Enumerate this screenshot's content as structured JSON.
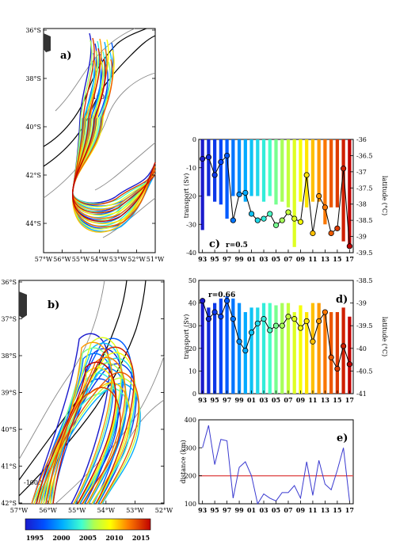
{
  "colors": {
    "frame": "#000000",
    "threshold_line": "#e05050",
    "distance_line": "#3a3ad0",
    "connector": "#000000"
  },
  "colorbar": {
    "labels": [
      "1995",
      "2000",
      "2005",
      "2010",
      "2015"
    ]
  },
  "chart_data": [
    {
      "panel": "a)",
      "type": "map",
      "lat_ticks": [
        "36°S",
        "38°S",
        "40°S",
        "42°S",
        "44°S"
      ],
      "lon_ticks": [
        "57°W",
        "56°W",
        "55°W",
        "54°W",
        "53°W",
        "52°W",
        "51°W"
      ]
    },
    {
      "panel": "b)",
      "type": "map",
      "lat_ticks": [
        "36°S",
        "37°S",
        "38°S",
        "39°S",
        "40°S",
        "41°S",
        "42°S"
      ],
      "lon_ticks": [
        "57°W",
        "56°W",
        "55°W",
        "54°W",
        "53°W",
        "52°W"
      ]
    },
    {
      "panel": "c)",
      "type": "bar",
      "annotation": "r=0.5",
      "ylabel": "transport (Sv)",
      "ylabel_right": "latitude (°C)",
      "ylim": [
        -40,
        0
      ],
      "yticks": [
        "0",
        "-10",
        "-20",
        "-30",
        "-40"
      ],
      "ylim_right": [
        -39.5,
        -36
      ],
      "yticks_right": [
        "-36",
        "-36.5",
        "-37",
        "-37.5",
        "-38",
        "-38.5",
        "-39",
        "-39.5"
      ],
      "xtick_labels": [
        "93",
        "95",
        "97",
        "99",
        "01",
        "03",
        "05",
        "07",
        "09",
        "11",
        "13",
        "15",
        "17"
      ],
      "years": [
        1993,
        1994,
        1995,
        1996,
        1997,
        1998,
        1999,
        2000,
        2001,
        2002,
        2003,
        2004,
        2005,
        2006,
        2007,
        2008,
        2009,
        2010,
        2011,
        2012,
        2013,
        2014,
        2015,
        2016,
        2017
      ],
      "values": [
        -32,
        -20,
        -22,
        -23,
        -28,
        -20,
        -20,
        -22,
        -20,
        -20,
        -22,
        -20,
        -23,
        -22,
        -24,
        -38,
        -22,
        -24,
        -22,
        -22,
        -30,
        -24,
        -24,
        -36,
        -37
      ],
      "latitude": [
        -36.6,
        -36.55,
        -37.1,
        -36.7,
        -36.5,
        -38.5,
        -37.7,
        -37.65,
        -38.3,
        -38.5,
        -38.45,
        -38.3,
        -38.65,
        -38.5,
        -38.25,
        -38.45,
        -38.55,
        -37.1,
        -38.9,
        -37.75,
        -38.1,
        -38.9,
        -38.75,
        -36.9,
        -39.3
      ]
    },
    {
      "panel": "d)",
      "type": "bar",
      "annotation": "r=0.66",
      "ylabel": "transport (Sv)",
      "ylabel_right": "latitude (°C)",
      "ylim": [
        0,
        50
      ],
      "yticks": [
        "0",
        "10",
        "20",
        "30",
        "40",
        "50"
      ],
      "ylim_right": [
        -41,
        -38.5
      ],
      "yticks_right": [
        "-38.5",
        "-39",
        "-39.5",
        "-40",
        "-40.5",
        "-41"
      ],
      "xtick_labels": [
        "93",
        "95",
        "97",
        "99",
        "01",
        "03",
        "05",
        "07",
        "09",
        "11",
        "13",
        "15",
        "17"
      ],
      "years": [
        1993,
        1994,
        1995,
        1996,
        1997,
        1998,
        1999,
        2000,
        2001,
        2002,
        2003,
        2004,
        2005,
        2006,
        2007,
        2008,
        2009,
        2010,
        2011,
        2012,
        2013,
        2014,
        2015,
        2016,
        2017
      ],
      "values": [
        42,
        38,
        40,
        42,
        43,
        42,
        40,
        36,
        38,
        38,
        40,
        40,
        39,
        40,
        40,
        36,
        39,
        36,
        40,
        40,
        35,
        36,
        36,
        38,
        34
      ],
      "latitude": [
        -38.95,
        -39.35,
        -39.2,
        -39.3,
        -38.95,
        -39.35,
        -39.85,
        -40.05,
        -39.65,
        -39.45,
        -39.35,
        -39.6,
        -39.5,
        -39.5,
        -39.3,
        -39.35,
        -39.55,
        -39.4,
        -39.85,
        -39.4,
        -39.2,
        -40.2,
        -40.45,
        -39.95,
        -40.35
      ]
    },
    {
      "panel": "e)",
      "type": "line",
      "ylabel": "distance (km)",
      "ylim": [
        100,
        400
      ],
      "yticks": [
        "100",
        "200",
        "300",
        "400"
      ],
      "xtick_labels": [
        "93",
        "95",
        "97",
        "99",
        "01",
        "03",
        "05",
        "07",
        "09",
        "11",
        "13",
        "15",
        "17"
      ],
      "threshold": 200,
      "years": [
        1993,
        1994,
        1995,
        1996,
        1997,
        1998,
        1999,
        2000,
        2001,
        2002,
        2003,
        2004,
        2005,
        2006,
        2007,
        2008,
        2009,
        2010,
        2011,
        2012,
        2013,
        2014,
        2015,
        2016,
        2017
      ],
      "values": [
        300,
        380,
        240,
        330,
        325,
        120,
        230,
        250,
        200,
        100,
        135,
        120,
        110,
        140,
        140,
        165,
        120,
        250,
        130,
        255,
        170,
        150,
        220,
        300,
        110
      ]
    }
  ]
}
